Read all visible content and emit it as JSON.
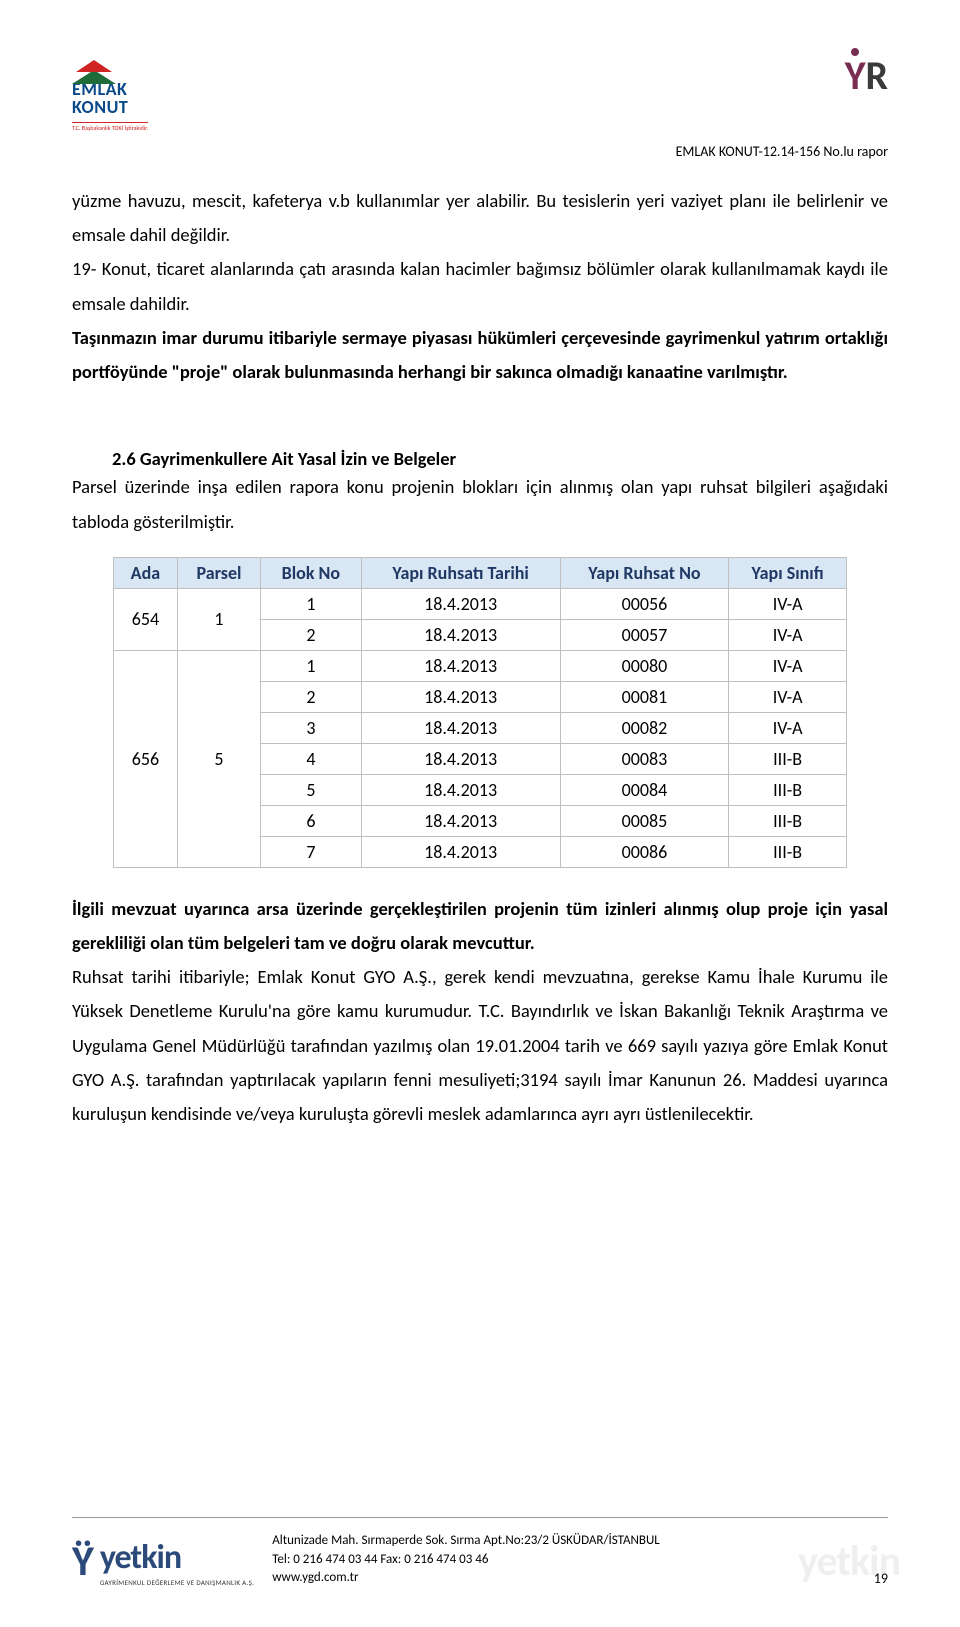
{
  "header": {
    "logo_left_line1": "EMLAK",
    "logo_left_line2": "KONUT",
    "logo_left_sub": "T.C. Başbakanlık TOKİ İştirakidir.",
    "logo_right": "YR",
    "doc_id": "EMLAK KONUT-12.14-156 No.lu rapor"
  },
  "paras": {
    "p1": "yüzme havuzu, mescit, kafeterya v.b kullanımlar yer alabilir. Bu tesislerin yeri vaziyet planı ile belirlenir ve emsale dahil değildir.",
    "p2": "19- Konut, ticaret alanlarında çatı arasında kalan hacimler bağımsız bölümler olarak kullanılmamak kaydı ile emsale dahildir.",
    "p3": "Taşınmazın imar durumu itibariyle sermaye piyasası hükümleri çerçevesinde gayrimenkul yatırım ortaklığı portföyünde \"proje\" olarak bulunmasında herhangi bir sakınca olmadığı kanaatine varılmıştır.",
    "section_head": "2.6 Gayrimenkullere Ait Yasal İzin ve Belgeler",
    "p4": "Parsel üzerinde inşa edilen rapora konu projenin blokları için alınmış olan yapı ruhsat bilgileri aşağıdaki tabloda gösterilmiştir.",
    "p5a": "İlgili mevzuat uyarınca arsa üzerinde gerçekleştirilen projenin tüm izinleri alınmış olup proje için yasal gerekliliği olan tüm belgeleri tam ve doğru olarak mevcuttur.",
    "p5b": "Ruhsat tarihi itibariyle; Emlak Konut GYO A.Ş., gerek kendi mevzuatına, gerekse Kamu İhale Kurumu ile Yüksek Denetleme Kurulu'na göre kamu kurumudur. T.C. Bayındırlık ve İskan Bakanlığı Teknik Araştırma ve Uygulama Genel Müdürlüğü tarafından yazılmış olan 19.01.2004 tarih ve 669 sayılı yazıya göre Emlak Konut GYO A.Ş. tarafından yaptırılacak yapıların fenni mesuliyeti;3194 sayılı İmar Kanunun 26. Maddesi uyarınca kuruluşun kendisinde ve/veya kuruluşta görevli meslek adamlarınca ayrı ayrı üstlenilecektir."
  },
  "table": {
    "headers": [
      "Ada",
      "Parsel",
      "Blok No",
      "Yapı Ruhsatı Tarihi",
      "Yapı Ruhsat No",
      "Yapı Sınıfı"
    ],
    "groups": [
      {
        "ada": "654",
        "parsel": "1",
        "rows": [
          {
            "blok": "1",
            "tarih": "18.4.2013",
            "no": "00056",
            "sinif": "IV-A"
          },
          {
            "blok": "2",
            "tarih": "18.4.2013",
            "no": "00057",
            "sinif": "IV-A"
          }
        ]
      },
      {
        "ada": "656",
        "parsel": "5",
        "rows": [
          {
            "blok": "1",
            "tarih": "18.4.2013",
            "no": "00080",
            "sinif": "IV-A"
          },
          {
            "blok": "2",
            "tarih": "18.4.2013",
            "no": "00081",
            "sinif": "IV-A"
          },
          {
            "blok": "3",
            "tarih": "18.4.2013",
            "no": "00082",
            "sinif": "IV-A"
          },
          {
            "blok": "4",
            "tarih": "18.4.2013",
            "no": "00083",
            "sinif": "III-B"
          },
          {
            "blok": "5",
            "tarih": "18.4.2013",
            "no": "00084",
            "sinif": "III-B"
          },
          {
            "blok": "6",
            "tarih": "18.4.2013",
            "no": "00085",
            "sinif": "III-B"
          },
          {
            "blok": "7",
            "tarih": "18.4.2013",
            "no": "00086",
            "sinif": "III-B"
          }
        ]
      }
    ],
    "header_bg": "#d9e6f4",
    "header_color": "#1f3864",
    "border_color": "#c0c0c0"
  },
  "footer": {
    "logo_word": "yetkin",
    "logo_tag": "GAYRİMENKUL DEĞERLEME VE DANIŞMANLIK A.Ş.",
    "addr": "Altunizade Mah. Sırmaperde Sok. Sırma Apt.No:23/2 ÜSKÜDAR/İSTANBUL",
    "tel": "Tel: 0 216 474 03 44 Fax: 0 216 474 03 46",
    "web": "www.ygd.com.tr",
    "page": "19",
    "watermark": "yetkin"
  }
}
